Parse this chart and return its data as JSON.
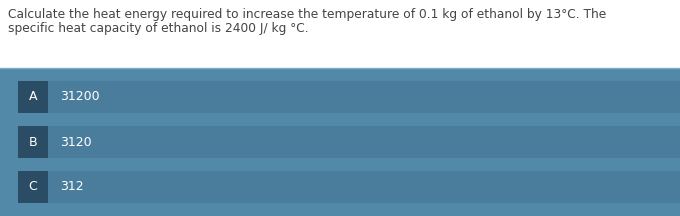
{
  "question_line1": "Calculate the heat energy required to increase the temperature of 0.1 kg of ethanol by 13°C. The",
  "question_line2": "specific heat capacity of ethanol is 2400 J/ kg °C.",
  "options": [
    {
      "label": "A",
      "text": "31200"
    },
    {
      "label": "B",
      "text": "3120"
    },
    {
      "label": "C",
      "text": "312"
    }
  ],
  "bg_color": "#ffffff",
  "panel_bg_color": "#5289a8",
  "option_bg_color": "#4a7d9c",
  "label_box_color": "#2b4c65",
  "separator_color": "#7aaec8",
  "text_color_question": "#444444",
  "text_color_option": "#ffffff",
  "question_fontsize": 8.8,
  "option_fontsize": 9.0,
  "label_fontsize": 9.0,
  "fig_width": 6.8,
  "fig_height": 2.16,
  "dpi": 100
}
